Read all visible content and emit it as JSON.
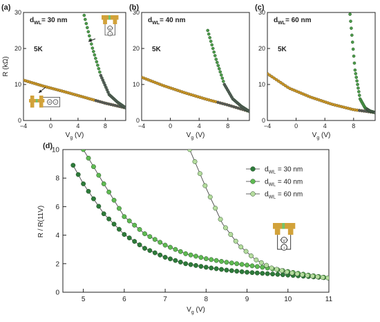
{
  "chart_data": [
    {
      "panel": "(a)",
      "type": "scatter",
      "annotation": "dWL= 30 nm",
      "temp_label": "5K",
      "ylabel": "R (kΩ)",
      "xlabel": "Vg (V)",
      "xlim": [
        -4,
        11
      ],
      "ylim": [
        0,
        30
      ],
      "xticks": [
        "−4",
        "0",
        "4",
        "8"
      ],
      "yticks": [
        "0",
        "10",
        "20",
        "30"
      ],
      "colors": {
        "normal": "#c99526",
        "other": "#4c9a4a",
        "overlap": "#555a5a"
      },
      "series": [
        {
          "label": "",
          "role": "normal",
          "x_range": [
            -4,
            11
          ],
          "values": [
            11.2,
            9.5,
            8.0,
            6.4,
            4.8,
            3.5
          ]
        },
        {
          "label": "",
          "role": "other",
          "x_range": [
            4.9,
            11
          ],
          "values": [
            29.2,
            20.1,
            12.5,
            7.2,
            5.1,
            3.5
          ]
        }
      ]
    },
    {
      "panel": "(b)",
      "type": "scatter",
      "annotation": "dWL= 40 nm",
      "temp_label": "5K",
      "xlabel": "Vg (V)",
      "xlim": [
        -4,
        11
      ],
      "ylim": [
        0,
        30
      ],
      "xticks": [
        "−4",
        "0",
        "4",
        "8"
      ],
      "yticks": [
        "0",
        "10",
        "20",
        "30"
      ],
      "series": [
        {
          "label": "",
          "role": "normal",
          "x_range": [
            -4,
            11
          ],
          "values": [
            12.0,
            9.7,
            7.7,
            5.9,
            4.3,
            2.5
          ]
        },
        {
          "label": "",
          "role": "other",
          "x_range": [
            5.2,
            11
          ],
          "values": [
            25.0,
            17.0,
            10.0,
            6.0,
            4.0,
            2.5
          ]
        }
      ]
    },
    {
      "panel": "(c)",
      "type": "scatter",
      "annotation": "dWL= 60 nm",
      "temp_label": "5K",
      "xlabel": "Vg (V)",
      "xlim": [
        -4,
        11
      ],
      "ylim": [
        0,
        30
      ],
      "xticks": [
        "−4",
        "0",
        "4",
        "8"
      ],
      "yticks": [
        "0",
        "10",
        "20",
        "30"
      ],
      "series": [
        {
          "label": "",
          "role": "normal",
          "x_range": [
            -4,
            11
          ],
          "values": [
            13.0,
            9.0,
            6.5,
            4.5,
            3.0,
            2.2
          ]
        },
        {
          "label": "",
          "role": "other",
          "x_range": [
            7.5,
            11
          ],
          "values": [
            29.5,
            14.0,
            6.0,
            3.5,
            2.6,
            2.2
          ]
        }
      ]
    },
    {
      "panel": "(d)",
      "type": "scatter",
      "xlabel": "Vg (V)",
      "ylabel": "R / R(11V)",
      "xlim": [
        4.5,
        11
      ],
      "ylim": [
        0,
        10
      ],
      "xticks": [
        "5",
        "6",
        "7",
        "8",
        "9",
        "10",
        "11"
      ],
      "yticks": [
        "0",
        "2",
        "4",
        "6",
        "8",
        "10"
      ],
      "series": [
        {
          "name": "dWL = 30 nm",
          "color": "#2d7a3a",
          "x": [
            4.75,
            5.0,
            5.5,
            6.0,
            6.5,
            7.0,
            7.5,
            8.0,
            8.5,
            9.0,
            9.5,
            10.0,
            10.5,
            11.0
          ],
          "y": [
            8.9,
            7.6,
            5.5,
            4.05,
            3.08,
            2.45,
            2.0,
            1.75,
            1.55,
            1.4,
            1.3,
            1.2,
            1.1,
            1.0
          ]
        },
        {
          "name": "dWL = 40 nm",
          "color": "#5fba52",
          "x": [
            5.0,
            5.5,
            6.0,
            6.5,
            7.0,
            7.5,
            8.0,
            8.5,
            9.0,
            9.5,
            10.0,
            10.5,
            11.0
          ],
          "y": [
            10.0,
            7.6,
            5.3,
            4.1,
            3.3,
            2.7,
            2.35,
            2.1,
            1.9,
            1.7,
            1.45,
            1.2,
            1.0
          ]
        },
        {
          "name": "dWL = 60 nm",
          "color": "#b5dc9e",
          "x": [
            7.6,
            8.0,
            8.4,
            8.8,
            9.2,
            9.6,
            10.0,
            10.4,
            10.8,
            11.0
          ],
          "y": [
            10.0,
            7.3,
            4.8,
            3.3,
            2.3,
            1.7,
            1.4,
            1.2,
            1.05,
            1.0
          ]
        }
      ]
    }
  ],
  "legend": {
    "entries": [
      {
        "prefix": "d",
        "sub": "WL",
        "rest": " = 30 nm"
      },
      {
        "prefix": "d",
        "sub": "WL",
        "rest": " = 40 nm"
      },
      {
        "prefix": "d",
        "sub": "WL",
        "rest": " = 60 nm"
      }
    ]
  },
  "symbols": {
    "voltmeter": "V",
    "ammeter": "I",
    "source": "~"
  }
}
